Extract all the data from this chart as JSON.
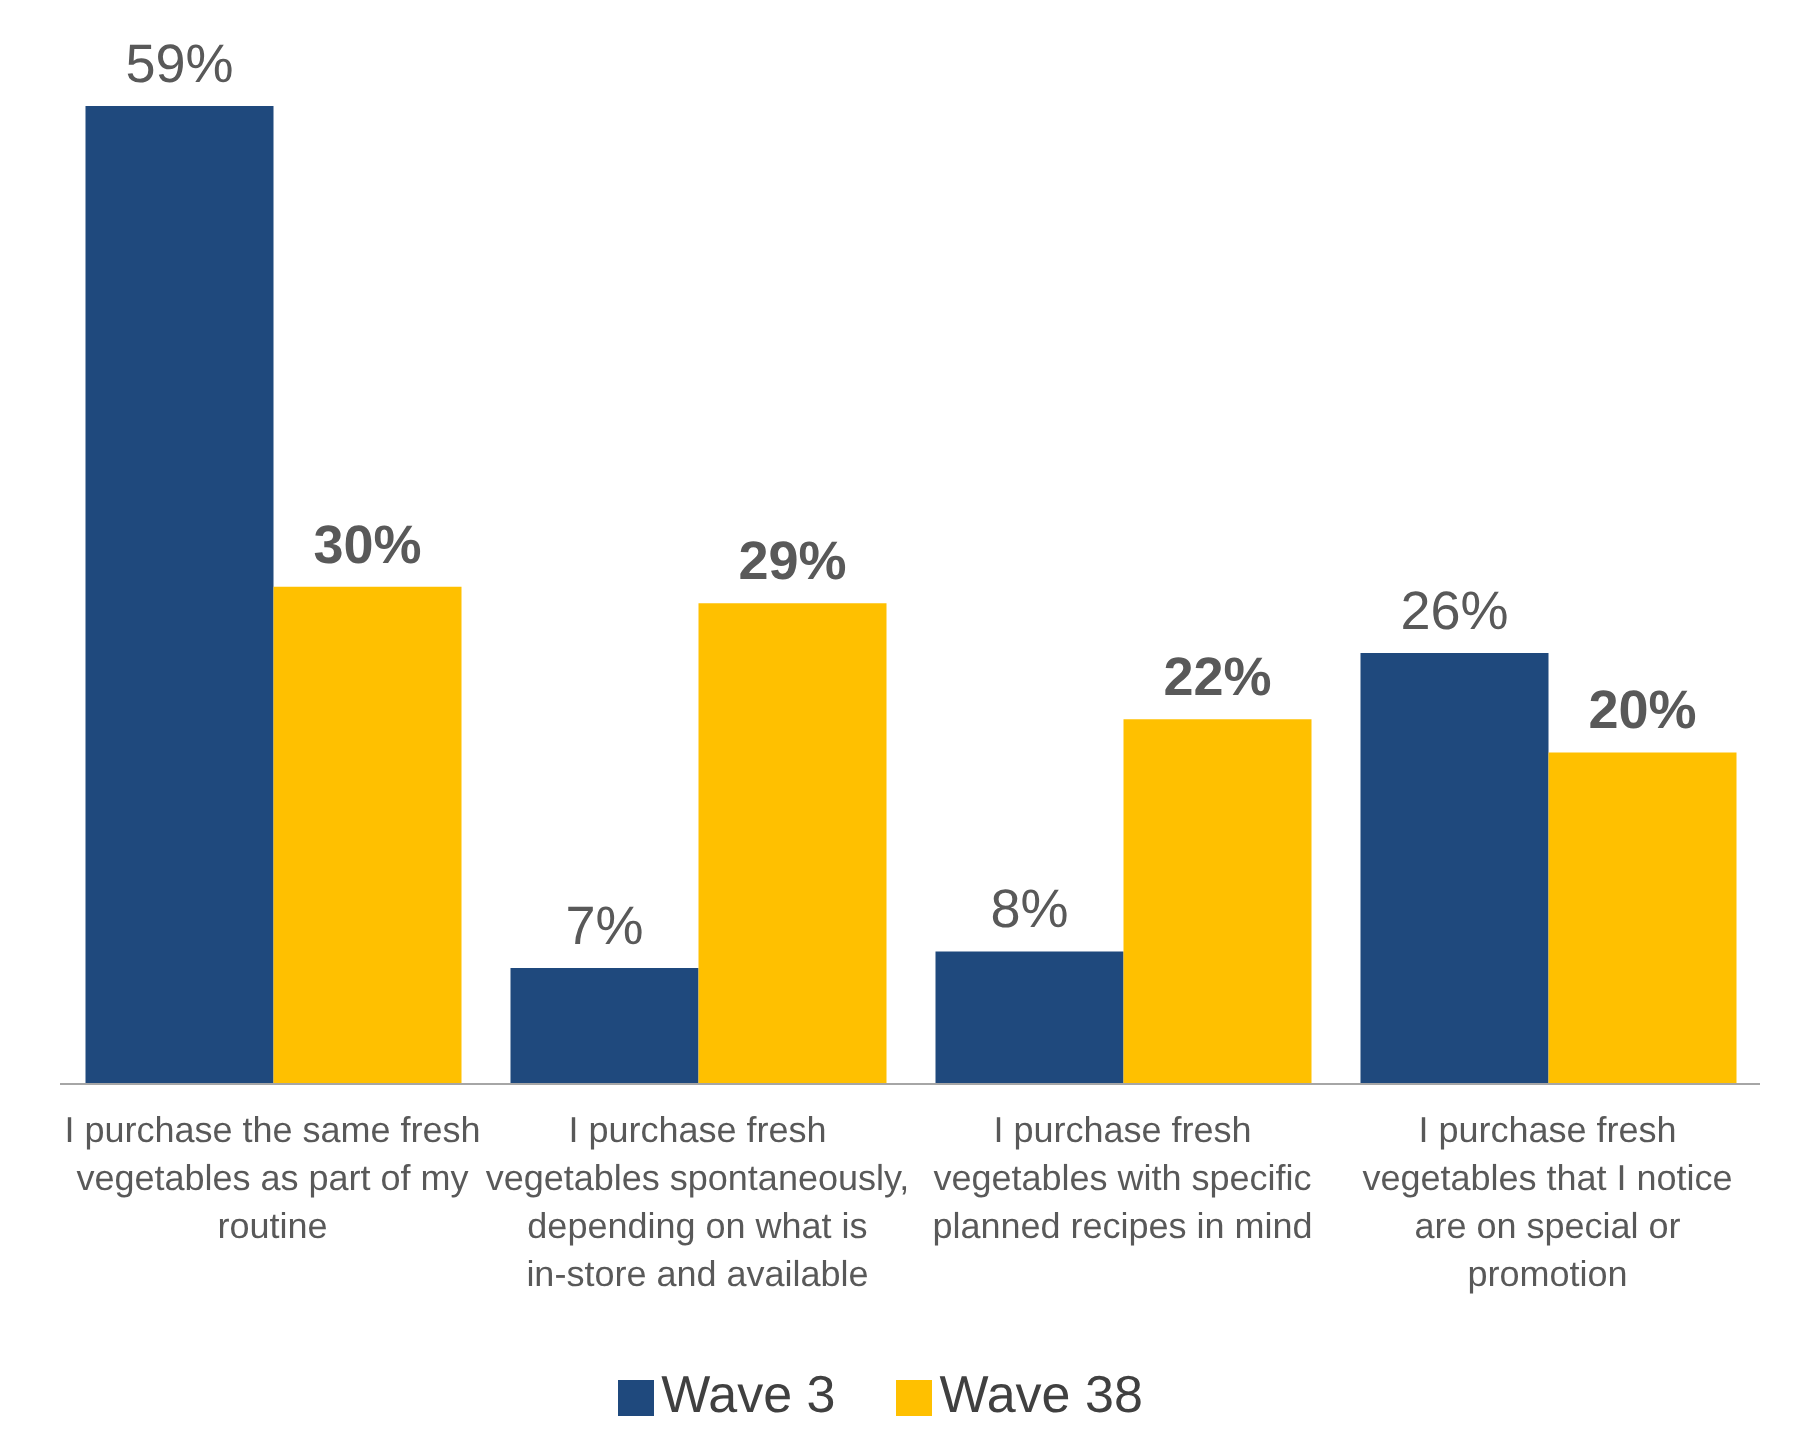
{
  "chart_data": {
    "type": "bar",
    "categories": [
      "I purchase the same fresh vegetables as part of my routine",
      "I purchase fresh vegetables spontaneously, depending on what is in-store and available",
      "I purchase fresh vegetables with specific planned recipes in mind",
      "I purchase fresh vegetables that I notice are on special or promotion"
    ],
    "series": [
      {
        "name": "Wave 3",
        "color": "#1f497d",
        "values": [
          59,
          7,
          8,
          26
        ],
        "value_labels": [
          "59%",
          "7%",
          "8%",
          "26%"
        ]
      },
      {
        "name": "Wave 38",
        "color": "#ffc000",
        "values": [
          30,
          29,
          22,
          20
        ],
        "value_labels": [
          "30%",
          "29%",
          "22%",
          "20%"
        ]
      }
    ],
    "legend": "bottom",
    "grid": false
  }
}
